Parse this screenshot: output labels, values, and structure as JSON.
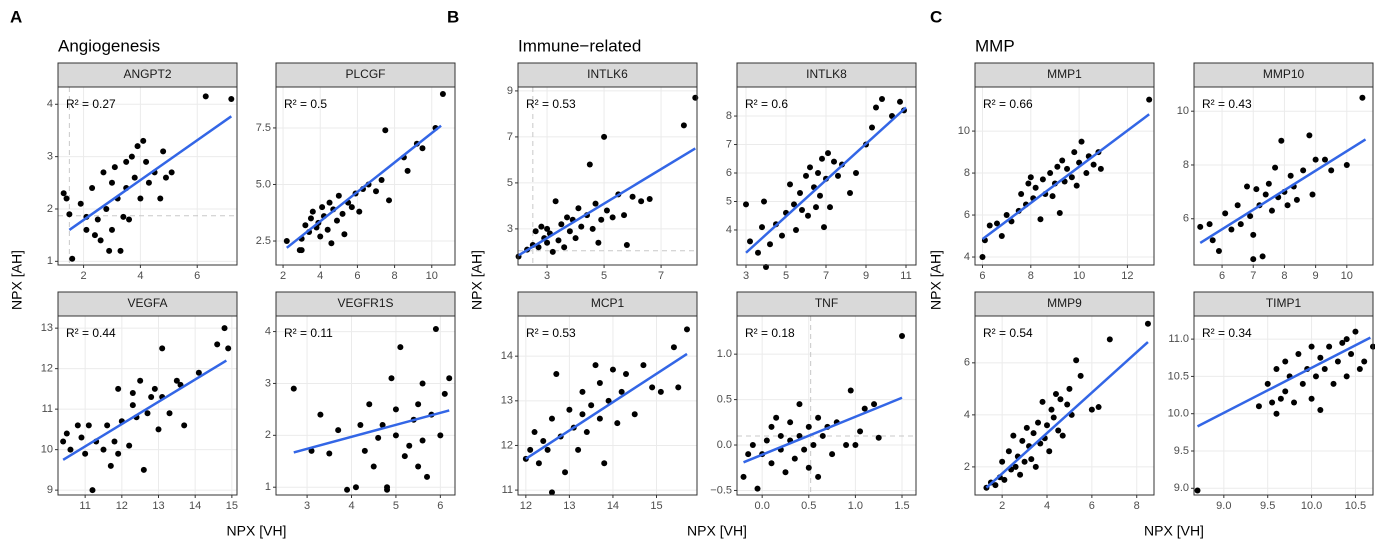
{
  "figure": {
    "groups": [
      {
        "letter": "A",
        "title": "Angiogenesis",
        "x_label": "NPX [VH]",
        "y_label": "NPX [AH]"
      },
      {
        "letter": "B",
        "title": "Immune−related",
        "x_label": "NPX [VH]",
        "y_label": "NPX [AH]"
      },
      {
        "letter": "C",
        "title": "MMP",
        "x_label": "NPX [VH]",
        "y_label": "NPX [AH]"
      }
    ]
  },
  "chart_data": [
    {
      "type": "scatter",
      "title": "ANGPT2",
      "annotation": "R² = 0.27",
      "color": "#000000",
      "grid": true,
      "x": [
        1.3,
        1.4,
        1.5,
        1.6,
        1.9,
        2.1,
        2.1,
        2.3,
        2.4,
        2.5,
        2.6,
        2.7,
        2.8,
        2.9,
        3.0,
        3.0,
        3.1,
        3.2,
        3.3,
        3.4,
        3.5,
        3.5,
        3.6,
        3.7,
        3.8,
        3.9,
        4.0,
        4.1,
        4.2,
        4.3,
        4.5,
        4.7,
        4.8,
        4.9,
        5.1,
        6.3,
        7.2
      ],
      "y": [
        2.3,
        2.2,
        1.9,
        1.05,
        2.1,
        1.6,
        1.85,
        2.4,
        1.5,
        1.8,
        1.4,
        2.7,
        2.0,
        1.2,
        2.5,
        1.6,
        2.8,
        2.2,
        1.2,
        1.85,
        2.9,
        2.4,
        1.8,
        3.0,
        2.6,
        3.2,
        2.2,
        3.3,
        2.9,
        2.5,
        2.7,
        2.2,
        3.1,
        2.6,
        2.7,
        4.15,
        4.1
      ],
      "fit": {
        "x": [
          1.5,
          7.2
        ],
        "y": [
          1.6,
          3.77
        ],
        "color": "#3366e6"
      },
      "vline": 1.5,
      "hline": 1.87,
      "xlim": [
        1.1,
        7.4
      ],
      "ylim": [
        0.93,
        4.33
      ],
      "xticks": [
        2,
        4,
        6
      ],
      "yticks": [
        1,
        2,
        3,
        4
      ]
    },
    {
      "type": "scatter",
      "title": "PLCGF",
      "annotation": "R² = 0.5",
      "color": "#000000",
      "grid": true,
      "x": [
        2.2,
        2.9,
        3.0,
        3.2,
        3.4,
        3.5,
        3.6,
        3.8,
        3.9,
        4.0,
        4.1,
        4.2,
        4.4,
        4.5,
        4.6,
        4.7,
        4.9,
        5.0,
        5.2,
        5.3,
        5.5,
        5.7,
        5.9,
        6.1,
        6.3,
        6.6,
        7.0,
        7.3,
        7.5,
        7.7,
        8.5,
        8.7,
        9.2,
        9.5,
        10.2,
        10.6,
        3.0
      ],
      "y": [
        2.5,
        2.1,
        2.6,
        3.2,
        2.9,
        3.5,
        3.8,
        3.1,
        3.3,
        2.7,
        4.0,
        3.6,
        3.0,
        4.2,
        2.4,
        3.9,
        3.4,
        4.5,
        3.7,
        2.8,
        4.2,
        4.0,
        4.6,
        3.8,
        4.8,
        5.0,
        4.7,
        5.2,
        7.4,
        4.3,
        6.2,
        5.6,
        6.8,
        6.6,
        7.5,
        9.0,
        2.1
      ],
      "fit": {
        "x": [
          2.2,
          10.5
        ],
        "y": [
          2.2,
          7.6
        ],
        "color": "#3366e6"
      },
      "xlim": [
        1.62,
        11.25
      ],
      "ylim": [
        1.44,
        9.31
      ],
      "xticks": [
        2,
        4,
        6,
        8,
        10
      ],
      "yticks": [
        2.5,
        {
          "value": 5,
          "label": "5.0"
        },
        7.5
      ]
    },
    {
      "type": "scatter",
      "title": "VEGFA",
      "annotation": "R² = 0.44",
      "color": "#000000",
      "grid": true,
      "x": [
        10.4,
        10.5,
        10.6,
        10.8,
        10.9,
        11.0,
        11.1,
        11.2,
        11.3,
        11.5,
        11.6,
        11.7,
        11.8,
        11.9,
        11.9,
        12.0,
        12.2,
        12.3,
        12.3,
        12.4,
        12.5,
        12.6,
        12.7,
        12.8,
        12.9,
        13.0,
        13.1,
        13.1,
        13.3,
        13.5,
        13.6,
        13.7,
        14.1,
        14.6,
        14.8,
        14.9
      ],
      "y": [
        10.2,
        10.4,
        10.0,
        10.6,
        10.3,
        9.9,
        10.6,
        9.0,
        10.2,
        10.0,
        10.6,
        9.6,
        10.2,
        11.5,
        9.9,
        10.7,
        10.1,
        11.4,
        11.1,
        10.8,
        11.7,
        9.5,
        10.9,
        11.3,
        11.5,
        10.5,
        12.5,
        11.3,
        10.9,
        11.7,
        11.6,
        10.6,
        11.9,
        12.6,
        13.0,
        12.5
      ],
      "fit": {
        "x": [
          10.4,
          14.85
        ],
        "y": [
          9.75,
          12.2
        ],
        "color": "#3366e6"
      },
      "xlim": [
        10.26,
        15.14
      ],
      "ylim": [
        8.88,
        13.3
      ],
      "xticks": [
        11,
        12,
        13,
        14,
        15
      ],
      "yticks": [
        9,
        10,
        11,
        12,
        13
      ]
    },
    {
      "type": "scatter",
      "title": "VEGFR1S",
      "annotation": "R² = 0.11",
      "color": "#000000",
      "grid": true,
      "x": [
        2.7,
        3.1,
        3.3,
        3.5,
        3.7,
        3.9,
        4.1,
        4.2,
        4.3,
        4.4,
        4.5,
        4.6,
        4.7,
        4.8,
        4.8,
        4.9,
        5.0,
        5.0,
        5.1,
        5.2,
        5.3,
        5.4,
        5.5,
        5.5,
        5.6,
        5.7,
        5.8,
        5.9,
        6.0,
        6.1,
        6.2,
        5.6
      ],
      "y": [
        2.9,
        1.7,
        2.4,
        1.65,
        2.1,
        0.95,
        1.0,
        2.2,
        1.7,
        2.6,
        1.4,
        1.95,
        2.2,
        1.0,
        0.95,
        3.1,
        2.0,
        2.5,
        3.7,
        1.6,
        1.8,
        2.3,
        1.4,
        2.6,
        3.0,
        1.2,
        2.4,
        4.05,
        2.0,
        2.8,
        3.1,
        1.9
      ],
      "fit": {
        "x": [
          2.7,
          6.2
        ],
        "y": [
          1.67,
          2.48
        ],
        "color": "#3366e6"
      },
      "xlim": [
        2.3,
        6.33
      ],
      "ylim": [
        0.85,
        4.3
      ],
      "xticks": [
        3,
        4,
        5,
        6
      ],
      "yticks": [
        1,
        2,
        3,
        4
      ]
    },
    {
      "type": "scatter",
      "title": "INTLK6",
      "annotation": "R² = 0.53",
      "color": "#000000",
      "grid": true,
      "x": [
        2.0,
        2.3,
        2.5,
        2.6,
        2.7,
        2.8,
        2.9,
        3.0,
        3.0,
        3.1,
        3.2,
        3.3,
        3.4,
        3.5,
        3.6,
        3.7,
        3.8,
        3.9,
        4.0,
        4.1,
        4.2,
        4.4,
        4.5,
        4.6,
        4.7,
        4.8,
        4.9,
        5.0,
        5.1,
        5.3,
        5.5,
        5.7,
        5.8,
        6.0,
        6.3,
        6.6,
        7.8,
        8.2
      ],
      "y": [
        1.8,
        2.1,
        2.3,
        2.9,
        2.2,
        3.1,
        2.6,
        2.4,
        3.0,
        2.8,
        2.0,
        4.2,
        2.5,
        3.2,
        2.2,
        3.5,
        2.9,
        3.4,
        2.6,
        3.9,
        3.1,
        3.6,
        5.8,
        3.0,
        4.1,
        2.4,
        3.4,
        7.0,
        3.8,
        3.5,
        4.5,
        3.6,
        2.3,
        4.4,
        4.2,
        4.3,
        7.5,
        8.7
      ],
      "fit": {
        "x": [
          2.0,
          8.2
        ],
        "y": [
          1.85,
          6.5
        ],
        "color": "#3366e6"
      },
      "vline": 2.5,
      "hline": 2.05,
      "xlim": [
        1.98,
        8.26
      ],
      "ylim": [
        1.43,
        9.17
      ],
      "xticks": [
        3,
        5,
        7
      ],
      "yticks": [
        3,
        5,
        7,
        9
      ]
    },
    {
      "type": "scatter",
      "title": "INTLK8",
      "annotation": "R² = 0.6",
      "color": "#000000",
      "grid": true,
      "x": [
        3.0,
        3.2,
        3.6,
        3.8,
        3.9,
        4.0,
        4.2,
        4.5,
        4.8,
        5.0,
        5.2,
        5.4,
        5.5,
        5.7,
        5.8,
        6.0,
        6.1,
        6.2,
        6.4,
        6.5,
        6.6,
        6.7,
        6.8,
        6.9,
        7.0,
        7.1,
        7.2,
        7.4,
        7.6,
        7.8,
        8.2,
        8.5,
        9.0,
        9.3,
        9.5,
        9.8,
        10.3,
        10.7,
        10.9
      ],
      "y": [
        4.9,
        3.6,
        3.2,
        4.1,
        5.0,
        2.7,
        3.5,
        4.2,
        3.8,
        4.6,
        5.6,
        4.9,
        4.0,
        5.3,
        4.7,
        5.9,
        4.5,
        6.2,
        5.5,
        4.8,
        6.0,
        5.2,
        6.5,
        4.1,
        5.8,
        6.7,
        4.8,
        6.4,
        5.9,
        6.3,
        5.3,
        6.0,
        7.0,
        7.6,
        8.3,
        8.6,
        8.0,
        8.5,
        8.2
      ],
      "fit": {
        "x": [
          3.0,
          11.0
        ],
        "y": [
          3.2,
          8.3
        ],
        "color": "#3366e6"
      },
      "xlim": [
        2.55,
        11.5
      ],
      "ylim": [
        2.77,
        9.02
      ],
      "xticks": [
        3,
        5,
        7,
        9,
        11
      ],
      "yticks": [
        4,
        5,
        6,
        7,
        8
      ]
    },
    {
      "type": "scatter",
      "title": "MCP1",
      "annotation": "R² = 0.53",
      "color": "#000000",
      "grid": true,
      "x": [
        12.0,
        12.1,
        12.2,
        12.3,
        12.4,
        12.5,
        12.6,
        12.6,
        12.7,
        12.8,
        12.9,
        13.0,
        13.1,
        13.2,
        13.3,
        13.3,
        13.4,
        13.5,
        13.6,
        13.7,
        13.7,
        13.8,
        13.9,
        14.0,
        14.1,
        14.2,
        14.3,
        14.5,
        14.7,
        14.9,
        15.1,
        15.4,
        15.5,
        15.7
      ],
      "y": [
        11.7,
        11.9,
        12.3,
        11.6,
        12.1,
        11.9,
        10.95,
        12.6,
        13.6,
        12.2,
        11.4,
        12.8,
        12.4,
        11.9,
        12.7,
        13.2,
        12.3,
        12.9,
        13.8,
        12.6,
        13.4,
        11.6,
        13.0,
        13.7,
        12.5,
        13.2,
        13.6,
        12.7,
        13.8,
        13.3,
        13.2,
        14.2,
        13.3,
        14.6
      ],
      "fit": {
        "x": [
          12.0,
          15.7
        ],
        "y": [
          11.7,
          14.05
        ],
        "color": "#3366e6"
      },
      "xlim": [
        11.82,
        15.93
      ],
      "ylim": [
        10.89,
        14.9
      ],
      "xticks": [
        12,
        13,
        14,
        15
      ],
      "yticks": [
        11,
        12,
        13,
        14
      ]
    },
    {
      "type": "scatter",
      "title": "TNF",
      "annotation": "R² = 0.18",
      "color": "#000000",
      "grid": true,
      "x": [
        -0.2,
        -0.15,
        -0.1,
        -0.05,
        0.0,
        0.05,
        0.1,
        0.1,
        0.15,
        0.2,
        0.2,
        0.25,
        0.3,
        0.3,
        0.35,
        0.4,
        0.4,
        0.45,
        0.5,
        0.5,
        0.55,
        0.6,
        0.6,
        0.65,
        0.7,
        0.75,
        0.8,
        0.9,
        0.95,
        1.0,
        1.05,
        1.1,
        1.2,
        1.25,
        1.5
      ],
      "y": [
        -0.35,
        -0.1,
        0.0,
        -0.48,
        -0.1,
        0.05,
        -0.2,
        0.2,
        0.3,
        -0.05,
        0.1,
        -0.3,
        0.05,
        0.25,
        -0.15,
        0.1,
        0.45,
        -0.05,
        0.2,
        -0.25,
        0.0,
        0.3,
        -0.35,
        0.1,
        0.2,
        -0.1,
        0.25,
        0.0,
        0.6,
        0.0,
        0.15,
        0.4,
        0.45,
        0.08,
        1.2
      ],
      "fit": {
        "x": [
          -0.2,
          1.5
        ],
        "y": [
          -0.19,
          0.52
        ],
        "color": "#3366e6"
      },
      "vline": 0.52,
      "hline": 0.1,
      "xlim": [
        -0.27,
        1.65
      ],
      "ylim": [
        -0.55,
        1.42
      ],
      "xticks": [
        {
          "value": 0,
          "label": "0.0"
        },
        0.5,
        {
          "value": 1,
          "label": "1.0"
        },
        1.5
      ],
      "yticks": [
        {
          "value": -0.5,
          "label": "−0.5"
        },
        {
          "value": 0,
          "label": "0.0"
        },
        0.5,
        {
          "value": 1,
          "label": "1.0"
        }
      ]
    },
    {
      "type": "scatter",
      "title": "MMP1",
      "annotation": "R² = 0.66",
      "color": "#000000",
      "grid": true,
      "x": [
        6.0,
        6.1,
        6.3,
        6.6,
        6.8,
        7.0,
        7.2,
        7.5,
        7.6,
        7.8,
        7.9,
        8.0,
        8.1,
        8.2,
        8.4,
        8.5,
        8.6,
        8.8,
        8.9,
        9.0,
        9.1,
        9.2,
        9.3,
        9.4,
        9.5,
        9.7,
        9.8,
        9.9,
        10.0,
        10.1,
        10.3,
        10.4,
        10.6,
        10.8,
        10.9,
        12.9
      ],
      "y": [
        4.0,
        4.8,
        5.5,
        5.6,
        5.0,
        6.0,
        5.7,
        6.2,
        7.0,
        6.5,
        7.5,
        7.8,
        6.8,
        7.3,
        5.8,
        7.7,
        7.0,
        8.0,
        6.9,
        7.5,
        8.3,
        6.1,
        8.6,
        7.6,
        8.2,
        7.8,
        9.0,
        7.4,
        8.5,
        9.5,
        8.0,
        8.8,
        8.4,
        9.0,
        8.2,
        11.5
      ],
      "fit": {
        "x": [
          6.0,
          12.9
        ],
        "y": [
          4.85,
          10.8
        ],
        "color": "#3366e6"
      },
      "xlim": [
        5.69,
        13.1
      ],
      "ylim": [
        3.62,
        12.1
      ],
      "xticks": [
        6,
        8,
        10,
        12
      ],
      "yticks": [
        4,
        6,
        8,
        10
      ]
    },
    {
      "type": "scatter",
      "title": "MMP10",
      "annotation": "R² = 0.43",
      "color": "#000000",
      "grid": true,
      "x": [
        5.3,
        5.6,
        5.7,
        5.9,
        6.1,
        6.3,
        6.5,
        6.6,
        6.8,
        6.9,
        7.0,
        7.0,
        7.1,
        7.2,
        7.3,
        7.4,
        7.5,
        7.6,
        7.7,
        7.8,
        7.9,
        8.0,
        8.1,
        8.2,
        8.3,
        8.4,
        8.6,
        8.8,
        8.9,
        9.0,
        9.3,
        9.5,
        10.0,
        10.5
      ],
      "y": [
        5.7,
        5.8,
        5.2,
        4.8,
        6.2,
        5.6,
        6.5,
        5.8,
        7.2,
        6.1,
        5.4,
        4.5,
        7.1,
        6.5,
        4.6,
        6.9,
        7.3,
        6.3,
        7.9,
        6.8,
        8.9,
        7.0,
        6.5,
        7.6,
        7.2,
        6.7,
        7.8,
        9.1,
        6.9,
        8.2,
        8.2,
        7.8,
        8.0,
        10.5
      ],
      "fit": {
        "x": [
          5.3,
          10.6
        ],
        "y": [
          5.1,
          8.95
        ],
        "color": "#3366e6"
      },
      "xlim": [
        5.1,
        10.84
      ],
      "ylim": [
        4.28,
        10.9
      ],
      "xticks": [
        6,
        7,
        8,
        9,
        10
      ],
      "yticks": [
        6,
        8,
        10
      ]
    },
    {
      "type": "scatter",
      "title": "MMP9",
      "annotation": "R² = 0.54",
      "color": "#000000",
      "grid": true,
      "x": [
        1.3,
        1.5,
        1.7,
        1.9,
        2.0,
        2.1,
        2.3,
        2.4,
        2.5,
        2.6,
        2.7,
        2.8,
        2.9,
        3.0,
        3.1,
        3.2,
        3.3,
        3.4,
        3.5,
        3.6,
        3.7,
        3.8,
        3.9,
        4.0,
        4.1,
        4.2,
        4.3,
        4.4,
        4.5,
        4.6,
        4.7,
        4.9,
        5.0,
        5.1,
        5.3,
        5.5,
        6.0,
        6.3,
        6.8,
        8.5
      ],
      "y": [
        1.2,
        1.4,
        1.3,
        1.6,
        2.2,
        1.5,
        2.6,
        1.9,
        3.2,
        2.0,
        2.4,
        1.7,
        3.0,
        2.2,
        3.5,
        2.8,
        2.3,
        3.3,
        2.0,
        3.7,
        2.9,
        4.5,
        3.1,
        3.6,
        2.6,
        4.2,
        3.9,
        4.8,
        3.4,
        4.6,
        3.2,
        4.4,
        5.0,
        4.0,
        6.1,
        5.5,
        4.2,
        4.3,
        6.9,
        7.5
      ],
      "fit": {
        "x": [
          1.3,
          8.5
        ],
        "y": [
          1.2,
          6.8
        ],
        "color": "#3366e6"
      },
      "xlim": [
        0.79,
        8.77
      ],
      "ylim": [
        0.92,
        7.8
      ],
      "xticks": [
        2,
        4,
        6,
        8
      ],
      "yticks": [
        2,
        4,
        6
      ]
    },
    {
      "type": "scatter",
      "title": "TIMP1",
      "annotation": "R² = 0.34",
      "color": "#000000",
      "grid": true,
      "x": [
        8.7,
        9.4,
        9.5,
        9.55,
        9.6,
        9.65,
        9.7,
        9.7,
        9.75,
        9.8,
        9.85,
        9.9,
        9.95,
        10.0,
        10.0,
        10.05,
        10.1,
        10.1,
        10.15,
        10.2,
        10.25,
        10.3,
        10.35,
        10.4,
        10.45,
        10.5,
        10.55,
        10.6,
        10.7,
        10.4,
        9.6
      ],
      "y": [
        8.97,
        10.1,
        10.4,
        10.15,
        10.6,
        10.2,
        10.7,
        10.3,
        10.5,
        10.15,
        10.8,
        10.4,
        10.6,
        10.9,
        10.2,
        10.5,
        10.75,
        10.05,
        10.6,
        10.9,
        10.4,
        10.7,
        10.95,
        10.5,
        10.8,
        11.1,
        10.6,
        10.7,
        10.9,
        11.0,
        10.0
      ],
      "fit": {
        "x": [
          8.7,
          10.67
        ],
        "y": [
          9.83,
          11.02
        ],
        "color": "#3366e6"
      },
      "xlim": [
        8.66,
        10.7
      ],
      "ylim": [
        8.91,
        11.31
      ],
      "xticks": [
        {
          "value": 9,
          "label": "9.0"
        },
        9.5,
        {
          "value": 10,
          "label": "10.0"
        },
        10.5
      ],
      "yticks": [
        {
          "value": 9,
          "label": "9.0"
        },
        9.5,
        {
          "value": 10,
          "label": "10.0"
        },
        10.5,
        {
          "value": 11,
          "label": "11.0"
        }
      ]
    }
  ]
}
